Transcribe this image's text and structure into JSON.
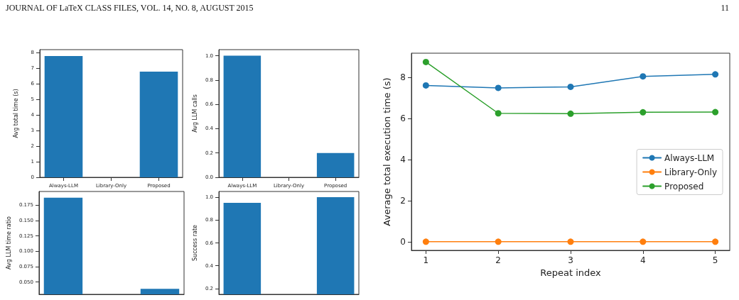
{
  "chart_data": [
    {
      "type": "other",
      "annotations": [
        "JOURNAL OF LaTeX CLASS FILES, VOL. 14, NO. 8, AUGUST 2015",
        "11"
      ]
    },
    {
      "type": "bar",
      "ylabel": "Avg total time (s)",
      "categories": [
        "Always-LLM",
        "Library-Only",
        "Proposed"
      ],
      "values": [
        7.77,
        0,
        6.77
      ],
      "color": "#1f77b4",
      "ylim": [
        0,
        8.18
      ],
      "yticks": [
        0,
        1,
        2,
        3,
        4,
        5,
        6,
        7,
        8
      ],
      "grid": false
    },
    {
      "type": "bar",
      "ylabel": "Avg LLM calls",
      "categories": [
        "Always-LLM",
        "Library-Only",
        "Proposed"
      ],
      "values": [
        1.0,
        0,
        0.2
      ],
      "color": "#1f77b4",
      "ylim": [
        0,
        1.05
      ],
      "yticks": [
        {
          "value": 0,
          "label": "0.0"
        },
        {
          "value": 0.2,
          "label": "0.2"
        },
        {
          "value": 0.4,
          "label": "0.4"
        },
        {
          "value": 0.6,
          "label": "0.6"
        },
        {
          "value": 0.8,
          "label": "0.8"
        },
        {
          "value": 1,
          "label": "1.0"
        }
      ],
      "grid": false
    },
    {
      "type": "bar",
      "ylabel": "Avg LLM time ratio",
      "categories": [
        null,
        null,
        null
      ],
      "values": [
        0.187,
        null,
        0.039
      ],
      "color": "#1f77b4",
      "ylim": [
        0.03,
        0.197
      ],
      "yticks": [
        {
          "value": 0.05,
          "label": "0.050"
        },
        {
          "value": 0.075,
          "label": "0.075"
        },
        {
          "value": 0.1,
          "label": "0.100"
        },
        {
          "value": 0.125,
          "label": "0.125"
        },
        {
          "value": 0.15,
          "label": "0.150"
        },
        {
          "value": 0.175,
          "label": "0.175"
        }
      ],
      "grid": false
    },
    {
      "type": "bar",
      "ylabel": "Success rate",
      "categories": [
        null,
        null,
        null
      ],
      "values": [
        0.95,
        null,
        1.0
      ],
      "color": "#1f77b4",
      "ylim": [
        0.15,
        1.05
      ],
      "yticks": [
        {
          "value": 0.2,
          "label": "0.2"
        },
        {
          "value": 0.4,
          "label": "0.4"
        },
        {
          "value": 0.6,
          "label": "0.6"
        },
        {
          "value": 0.8,
          "label": "0.8"
        },
        {
          "value": 1,
          "label": "1.0"
        }
      ],
      "grid": false
    },
    {
      "type": "line",
      "xlabel": "Repeat index",
      "ylabel": "Average total execution time (s)",
      "x": [
        1,
        2,
        3,
        4,
        5
      ],
      "xlim": [
        0.8,
        5.2
      ],
      "xticks": [
        1,
        2,
        3,
        4,
        5
      ],
      "ylim": [
        -0.42,
        9.19
      ],
      "yticks": [
        0,
        2,
        4,
        6,
        8
      ],
      "grid": false,
      "legend": "right",
      "marker": "circle",
      "line_style": "solid",
      "series": [
        {
          "name": "Always-LLM",
          "color": "#1f77b4",
          "values": [
            7.62,
            7.5,
            7.55,
            8.06,
            8.16
          ]
        },
        {
          "name": "Library-Only",
          "color": "#ff7f0e",
          "values": [
            0,
            0,
            0,
            0,
            0
          ]
        },
        {
          "name": "Proposed",
          "color": "#2ca02c",
          "values": [
            8.76,
            6.26,
            6.24,
            6.31,
            6.32
          ]
        }
      ]
    }
  ]
}
